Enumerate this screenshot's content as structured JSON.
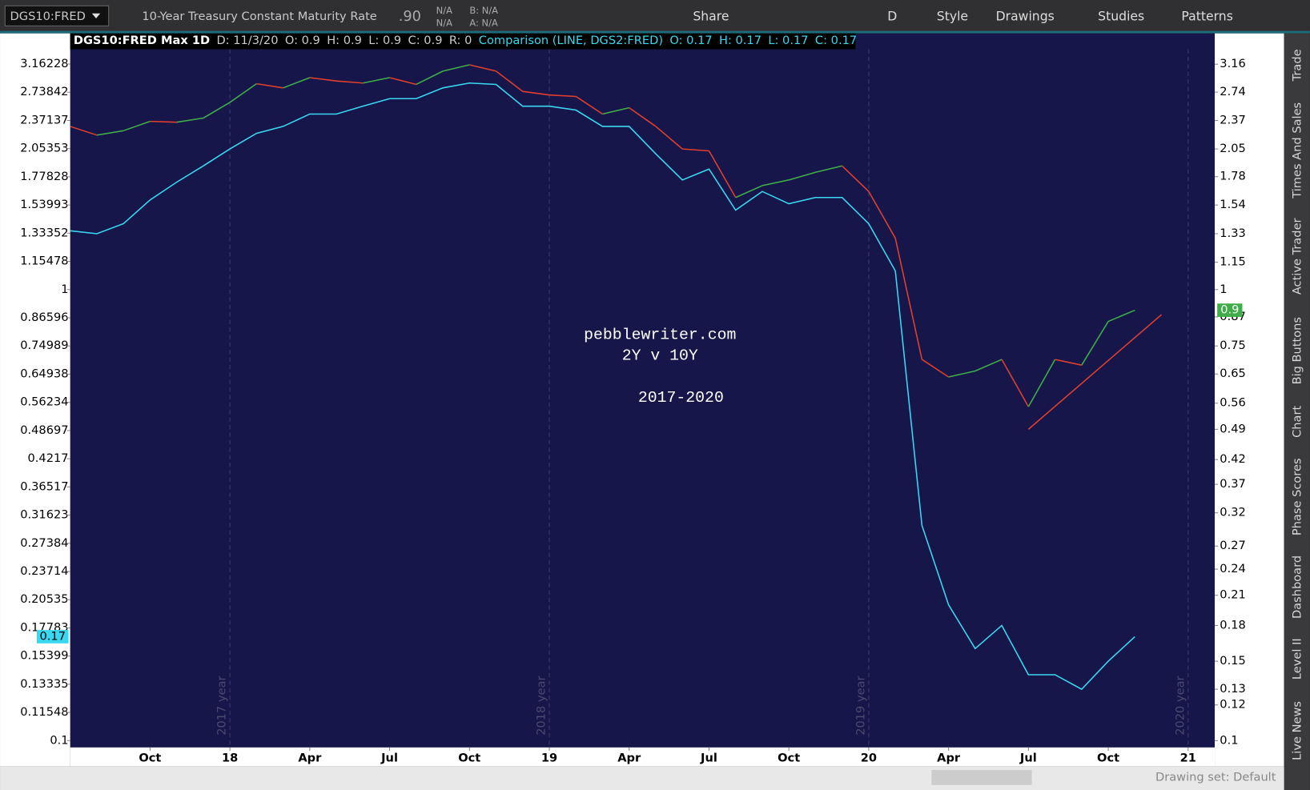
{
  "toolbar": {
    "symbol": "DGS10:FRED",
    "description": "10-Year Treasury Constant Maturity Rate",
    "last": ".90",
    "change": [
      "N/A",
      "N/A"
    ],
    "bid": "B: N/A",
    "ask": "A: N/A",
    "buttons": [
      "Share",
      "D",
      "Style",
      "Drawings",
      "Studies",
      "Patterns"
    ]
  },
  "sidebar": [
    "Trade",
    "Times And Sales",
    "Active Trader",
    "Big Buttons",
    "Chart",
    "Phase Scores",
    "Dashboard",
    "Level II",
    "Live News"
  ],
  "footer": {
    "drawing_set": "Drawing set: Default"
  },
  "chart_data": {
    "type": "line",
    "log_scale": true,
    "header": [
      "DGS10:FRED Max 1D",
      "D: 11/3/20",
      "O: 0.9",
      "H: 0.9",
      "L: 0.9",
      "C: 0.9",
      "R: 0"
    ],
    "comparison_header": [
      "Comparison (LINE, DGS2:FRED)",
      "O: 0.17",
      "H: 0.17",
      "L: 0.17",
      "C: 0.17"
    ],
    "annotations": [
      "pebblewriter.com",
      "2Y v 10Y",
      "2017-2020"
    ],
    "x": [
      "2017-07",
      "2017-08",
      "2017-09",
      "2017-10",
      "2017-11",
      "2017-12",
      "2018-01",
      "2018-02",
      "2018-03",
      "2018-04",
      "2018-05",
      "2018-06",
      "2018-07",
      "2018-08",
      "2018-09",
      "2018-10",
      "2018-11",
      "2018-12",
      "2019-01",
      "2019-02",
      "2019-03",
      "2019-04",
      "2019-05",
      "2019-06",
      "2019-07",
      "2019-08",
      "2019-09",
      "2019-10",
      "2019-11",
      "2019-12",
      "2020-01",
      "2020-02",
      "2020-03",
      "2020-04",
      "2020-05",
      "2020-06",
      "2020-07",
      "2020-08",
      "2020-09",
      "2020-10",
      "2020-11"
    ],
    "series": [
      {
        "axis": "y2",
        "up_color": "#3fae49",
        "down_color": "#e0402c",
        "values": [
          2.3,
          2.2,
          2.25,
          2.36,
          2.35,
          2.4,
          2.6,
          2.86,
          2.8,
          2.95,
          2.9,
          2.87,
          2.95,
          2.85,
          3.05,
          3.15,
          3.05,
          2.75,
          2.7,
          2.68,
          2.45,
          2.53,
          2.3,
          2.05,
          2.03,
          1.6,
          1.7,
          1.75,
          1.82,
          1.88,
          1.65,
          1.3,
          0.7,
          0.64,
          0.66,
          0.7,
          0.55,
          0.7,
          0.68,
          0.85,
          0.9
        ]
      },
      {
        "color": "#3ad8f0",
        "values": [
          1.35,
          1.33,
          1.4,
          1.58,
          1.73,
          1.88,
          2.05,
          2.22,
          2.3,
          2.45,
          2.45,
          2.55,
          2.65,
          2.65,
          2.8,
          2.87,
          2.85,
          2.55,
          2.55,
          2.5,
          2.3,
          2.3,
          2.0,
          1.75,
          1.85,
          1.5,
          1.65,
          1.55,
          1.6,
          1.6,
          1.4,
          1.1,
          0.3,
          0.2,
          0.16,
          0.18,
          0.14,
          0.14,
          0.13,
          0.15,
          0.17
        ]
      }
    ],
    "trendline": {
      "color": "#e0402c",
      "x": [
        "2020-07",
        "2020-12"
      ],
      "values": [
        0.49,
        0.88
      ]
    },
    "year_markers": [
      {
        "x": "2018-01",
        "label": "2017 year"
      },
      {
        "x": "2019-01",
        "label": "2018 year"
      },
      {
        "x": "2020-01",
        "label": "2019 year"
      },
      {
        "x": "2021-01",
        "label": "2020 year"
      }
    ],
    "xlim": [
      "2017-07",
      "2021-02"
    ],
    "xticks": [
      {
        "value": "2017-10",
        "label": "Oct"
      },
      {
        "value": "2018-01",
        "label": "18"
      },
      {
        "value": "2018-04",
        "label": "Apr"
      },
      {
        "value": "2018-07",
        "label": "Jul"
      },
      {
        "value": "2018-10",
        "label": "Oct"
      },
      {
        "value": "2019-01",
        "label": "19"
      },
      {
        "value": "2019-04",
        "label": "Apr"
      },
      {
        "value": "2019-07",
        "label": "Jul"
      },
      {
        "value": "2019-10",
        "label": "Oct"
      },
      {
        "value": "2020-01",
        "label": "20"
      },
      {
        "value": "2020-04",
        "label": "Apr"
      },
      {
        "value": "2020-07",
        "label": "Jul"
      },
      {
        "value": "2020-10",
        "label": "Oct"
      },
      {
        "value": "2021-01",
        "label": "21"
      }
    ],
    "ylim": [
      0.0966,
      3.41
    ],
    "yticks": [
      3.16228,
      2.73842,
      2.37137,
      2.05353,
      1.77828,
      1.53993,
      1.33352,
      1.15478,
      1,
      0.86596,
      0.74989,
      0.64938,
      0.56234,
      0.48697,
      0.4217,
      0.36517,
      0.31623,
      0.27384,
      0.23714,
      0.20535,
      0.17783,
      0.15399,
      0.13335,
      0.11548,
      0.1
    ],
    "y2lim": [
      0.0966,
      3.41
    ],
    "y2ticks": [
      3.16,
      2.74,
      2.37,
      2.05,
      1.78,
      1.54,
      1.33,
      1.15,
      1,
      0.87,
      0.75,
      0.65,
      0.56,
      0.49,
      0.42,
      0.37,
      0.32,
      0.27,
      0.24,
      0.21,
      0.18,
      0.15,
      0.13,
      0.12,
      0.1
    ]
  }
}
